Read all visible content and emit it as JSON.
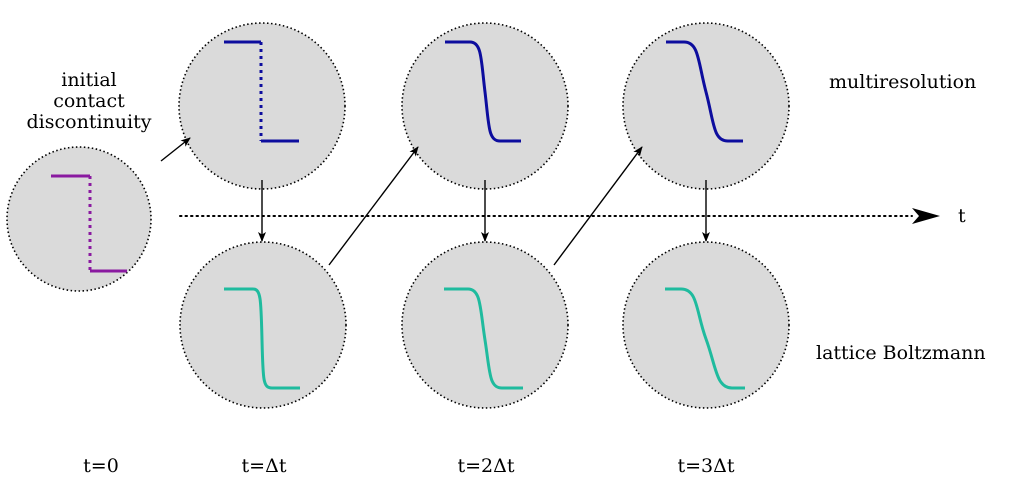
{
  "labels": {
    "initial_line1": "initial",
    "initial_line2": "contact",
    "initial_line3": "discontinuity",
    "multiresolution": "multiresolution",
    "lattice_boltzmann": "lattice Boltzmann",
    "time_axis": "t"
  },
  "time_labels": [
    "t=0",
    "t=Δt",
    "t=2Δt",
    "t=3Δt"
  ],
  "colors": {
    "circle_fill": "#dadada",
    "initial_profile": "#8a1aa0",
    "multiresolution_profile": "#0d0d9e",
    "lattice_boltzmann_profile": "#1fbb9e",
    "arrow": "#000000"
  }
}
